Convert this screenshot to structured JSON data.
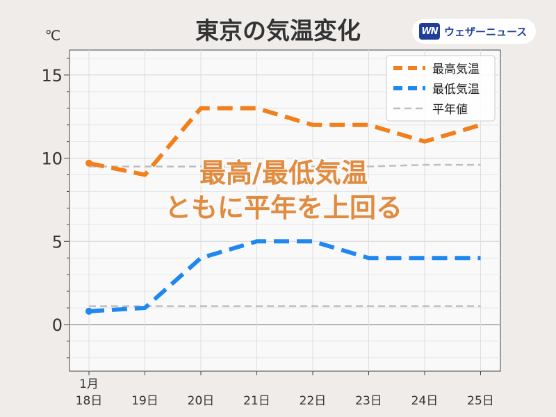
{
  "unit_label": "℃",
  "brand": {
    "mark": "WN",
    "name": "ウェザーニュース"
  },
  "colors": {
    "high": "#f07f1c",
    "low": "#1f87f0",
    "normal": "#bdbdbd",
    "annotation": "#e08b3e",
    "plot_bg": "#faf9fa"
  },
  "chart_data": {
    "type": "line",
    "title": "東京の気温変化",
    "categories": [
      "18日",
      "19日",
      "20日",
      "21日",
      "22日",
      "23日",
      "24日",
      "25日"
    ],
    "first_category_prefix": "1月",
    "ylim": [
      -2.8,
      16.5
    ],
    "yticks": [
      0,
      5,
      10,
      15
    ],
    "grid": true,
    "legend_position": "top-right",
    "series": [
      {
        "name": "最高気温",
        "key": "high",
        "values": [
          9.7,
          9.0,
          13.0,
          13.0,
          12.0,
          12.0,
          11.0,
          12.0
        ]
      },
      {
        "name": "最低気温",
        "key": "low",
        "values": [
          0.8,
          1.0,
          4.0,
          5.0,
          5.0,
          4.0,
          4.0,
          4.0
        ]
      },
      {
        "name": "平年値",
        "key": "normal_high",
        "values": [
          9.5,
          9.5,
          9.5,
          9.5,
          9.5,
          9.5,
          9.6,
          9.6
        ]
      },
      {
        "name": "",
        "key": "normal_low",
        "values": [
          1.1,
          1.1,
          1.1,
          1.1,
          1.1,
          1.1,
          1.1,
          1.1
        ]
      }
    ],
    "annotation": [
      "最高/最低気温",
      "ともに平年を上回る"
    ]
  }
}
